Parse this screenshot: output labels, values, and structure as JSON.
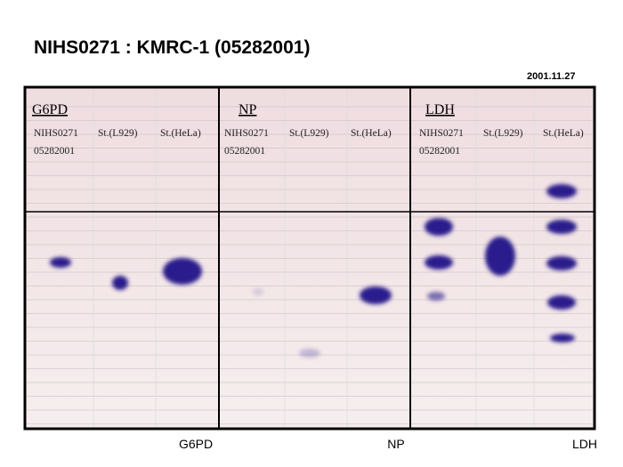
{
  "title": "NIHS0271 : KMRC-1 (05282001)",
  "date": "2001.11.27",
  "panels": [
    {
      "name": "G6PD",
      "lanes": [
        [
          "NIHS0271",
          "05282001"
        ],
        [
          "St.(L929)"
        ],
        [
          "St.(HeLa)"
        ]
      ],
      "caption": "G6PD"
    },
    {
      "name": "NP",
      "lanes": [
        [
          "NIHS0271",
          "05282001"
        ],
        [
          "St.(L929)"
        ],
        [
          "St.(HeLa)"
        ]
      ],
      "caption": "NP"
    },
    {
      "name": "LDH",
      "lanes": [
        [
          "NIHS0271",
          "05282001"
        ],
        [
          "St.(L929)"
        ],
        [
          "St.(HeLa)"
        ]
      ],
      "caption": "LDH"
    }
  ]
}
